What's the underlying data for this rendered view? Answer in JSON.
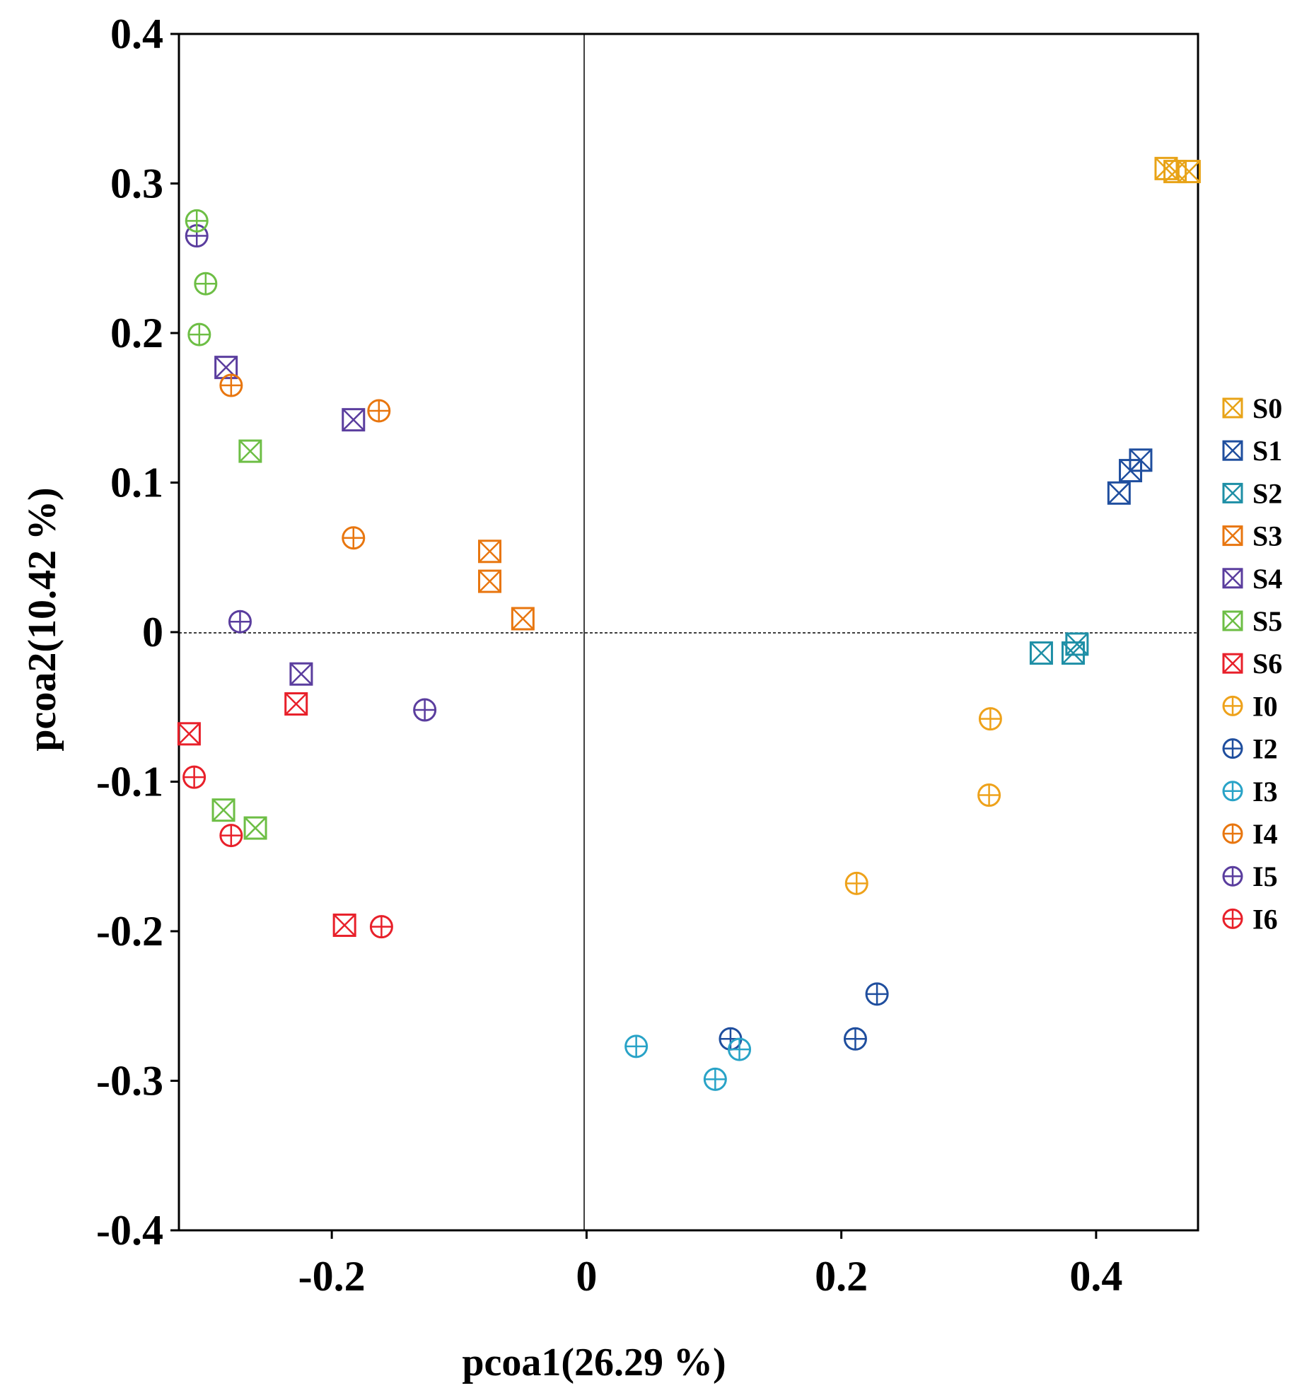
{
  "chart_data": {
    "type": "scatter",
    "title": "",
    "xlabel": "pcoa1(26.29 %)",
    "ylabel": "pcoa2(10.42 %)",
    "xlim": [
      -0.32,
      0.48
    ],
    "ylim": [
      -0.4,
      0.4
    ],
    "x_ticks": [
      -0.2,
      0,
      0.2,
      0.4
    ],
    "x_tick_labels": [
      "-0.2",
      "0",
      "0.2",
      "0.4"
    ],
    "y_ticks": [
      0.4,
      0.3,
      0.2,
      0.1,
      0,
      -0.1,
      -0.2,
      -0.3,
      -0.4
    ],
    "y_tick_labels": [
      "0.4",
      "0.3",
      "0.2",
      "0.1",
      "0",
      "-0.1",
      "-0.2",
      "-0.3",
      "-0.4"
    ],
    "reference_lines": {
      "x": 0,
      "y": 0
    },
    "legend_position": "right",
    "series": [
      {
        "name": "S0",
        "marker": "square-x",
        "color": "#E8A317",
        "points": [
          [
            0.455,
            0.31
          ],
          [
            0.462,
            0.308
          ],
          [
            0.473,
            0.308
          ]
        ]
      },
      {
        "name": "S1",
        "marker": "square-x",
        "color": "#1F4E9E",
        "points": [
          [
            0.418,
            0.093
          ],
          [
            0.427,
            0.108
          ],
          [
            0.435,
            0.115
          ]
        ]
      },
      {
        "name": "S2",
        "marker": "square-x",
        "color": "#1E8FA6",
        "points": [
          [
            0.357,
            -0.014
          ],
          [
            0.382,
            -0.014
          ],
          [
            0.385,
            -0.008
          ]
        ]
      },
      {
        "name": "S3",
        "marker": "square-x",
        "color": "#E8760F",
        "points": [
          [
            -0.076,
            0.054
          ],
          [
            -0.076,
            0.034
          ],
          [
            -0.05,
            0.009
          ]
        ]
      },
      {
        "name": "S4",
        "marker": "square-x",
        "color": "#5A3D9E",
        "points": [
          [
            -0.283,
            0.177
          ],
          [
            -0.183,
            0.142
          ],
          [
            -0.224,
            -0.028
          ]
        ]
      },
      {
        "name": "S5",
        "marker": "square-x",
        "color": "#6DBE45",
        "points": [
          [
            -0.264,
            0.121
          ],
          [
            -0.285,
            -0.119
          ],
          [
            -0.26,
            -0.131
          ]
        ]
      },
      {
        "name": "S6",
        "marker": "square-x",
        "color": "#E8202A",
        "points": [
          [
            -0.312,
            -0.068
          ],
          [
            -0.228,
            -0.048
          ],
          [
            -0.19,
            -0.196
          ]
        ]
      },
      {
        "name": "I0",
        "marker": "circle-plus",
        "color": "#EEA21B",
        "points": [
          [
            0.212,
            -0.168
          ],
          [
            0.317,
            -0.058
          ],
          [
            0.316,
            -0.109
          ]
        ]
      },
      {
        "name": "I2",
        "marker": "circle-plus",
        "color": "#1F4E9E",
        "points": [
          [
            0.228,
            -0.242
          ],
          [
            0.211,
            -0.272
          ],
          [
            0.113,
            -0.272
          ]
        ]
      },
      {
        "name": "I3",
        "marker": "circle-plus",
        "color": "#29A3C7",
        "points": [
          [
            0.039,
            -0.277
          ],
          [
            0.101,
            -0.299
          ],
          [
            0.12,
            -0.279
          ]
        ]
      },
      {
        "name": "I4",
        "marker": "circle-plus",
        "color": "#E8760F",
        "points": [
          [
            -0.163,
            0.148
          ],
          [
            -0.183,
            0.063
          ],
          [
            -0.279,
            0.165
          ]
        ]
      },
      {
        "name": "I5",
        "marker": "circle-plus",
        "color": "#5A3D9E",
        "points": [
          [
            -0.306,
            0.265
          ],
          [
            -0.272,
            0.007
          ],
          [
            -0.127,
            -0.052
          ]
        ]
      },
      {
        "name": "I6",
        "marker": "circle-plus",
        "color": "#E8202A",
        "points": [
          [
            -0.308,
            -0.097
          ],
          [
            -0.279,
            -0.136
          ],
          [
            -0.161,
            -0.197
          ]
        ]
      },
      {
        "name": "",
        "marker": "circle-plus",
        "color": "#6DBE45",
        "points": [
          [
            -0.306,
            0.275
          ],
          [
            -0.299,
            0.233
          ],
          [
            -0.304,
            0.199
          ]
        ]
      }
    ]
  }
}
